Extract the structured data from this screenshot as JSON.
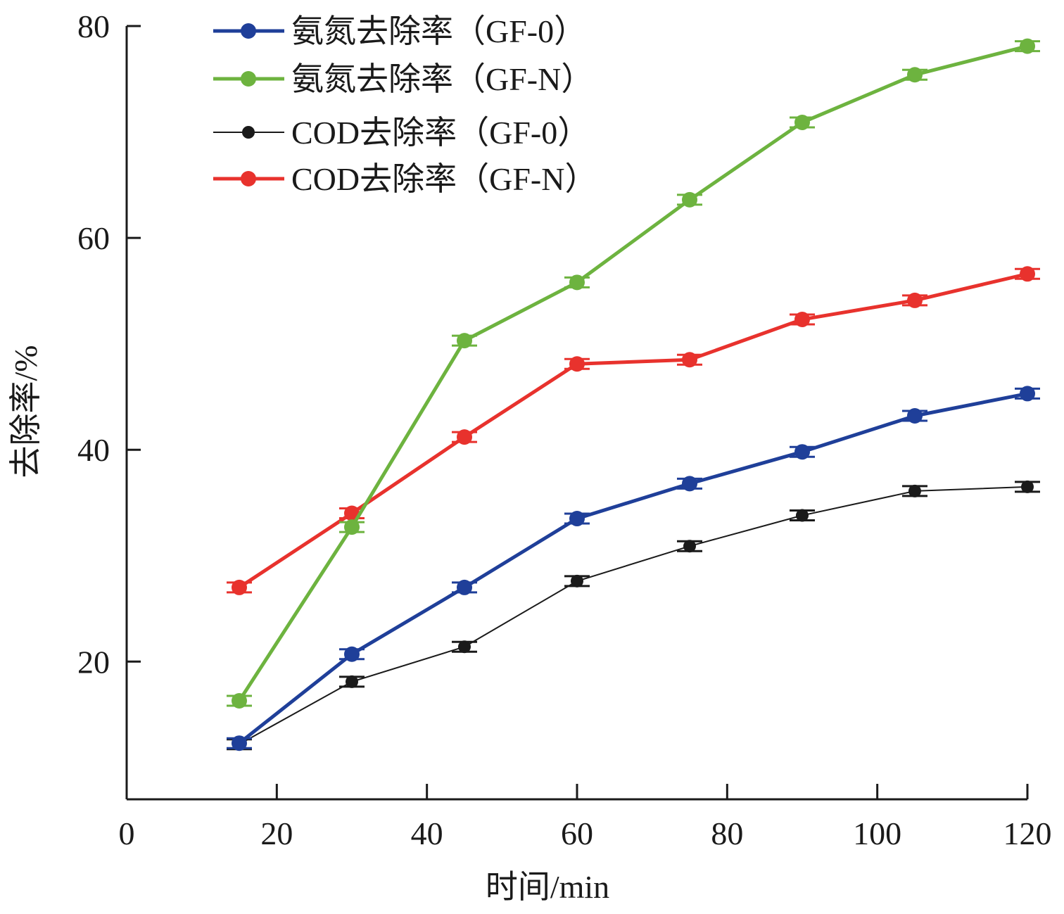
{
  "chart_data": {
    "type": "line",
    "xlabel": "时间/min",
    "ylabel": "去除率/%",
    "xlim": [
      0,
      120
    ],
    "ylim": [
      7,
      80
    ],
    "xticks": [
      0,
      20,
      40,
      60,
      80,
      100,
      120
    ],
    "yticks": [
      20,
      40,
      60,
      80
    ],
    "grid": false,
    "legend_position": "top-left",
    "x": [
      15,
      30,
      45,
      60,
      75,
      90,
      105,
      120
    ],
    "series": [
      {
        "name": "氨氮去除率（GF-0）",
        "color": "#1f3f99",
        "values": [
          12.3,
          20.7,
          27.0,
          33.5,
          36.8,
          39.8,
          43.2,
          45.3
        ]
      },
      {
        "name": "氨氮去除率（GF-N）",
        "color": "#6db33f",
        "values": [
          16.3,
          32.7,
          50.3,
          55.8,
          63.6,
          70.9,
          75.4,
          78.1
        ]
      },
      {
        "name": "COD去除率（GF-0）",
        "color": "#1a1a1a",
        "values": [
          12.2,
          18.1,
          21.4,
          27.6,
          30.9,
          33.8,
          36.1,
          36.5
        ]
      },
      {
        "name": "COD去除率（GF-N）",
        "color": "#e8322d",
        "values": [
          27.0,
          34.0,
          41.2,
          48.1,
          48.5,
          52.3,
          54.1,
          56.6
        ]
      }
    ]
  }
}
